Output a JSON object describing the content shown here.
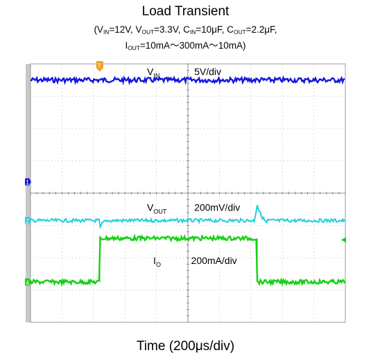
{
  "chart_data": {
    "type": "line",
    "title": "Load Transient",
    "conditions": {
      "vin": "12V",
      "vout": "3.3V",
      "cin": "10μF",
      "cout": "2.2μF",
      "iout": "10mA～300mA～10mA)"
    },
    "xlabel": "Time (200μs/div)",
    "x_divisions": 10,
    "y_divisions": 8,
    "grid": true,
    "channels": [
      {
        "marker": "1",
        "name_main": "V",
        "name_sub": "IN",
        "scale": "5V/div",
        "color": "#1515e0"
      },
      {
        "marker": "2",
        "name_main": "V",
        "name_sub": "OUT",
        "scale": "200mV/div",
        "color": "#22cde0"
      },
      {
        "marker": "4",
        "name_main": "I",
        "name_sub": "O",
        "scale": "200mA/div",
        "color": "#14d014"
      }
    ],
    "load_step": {
      "low": "10mA",
      "high": "300mA",
      "rise_time_div": 2.2,
      "fall_time_div": 7.2
    },
    "trigger_marker": "T"
  }
}
